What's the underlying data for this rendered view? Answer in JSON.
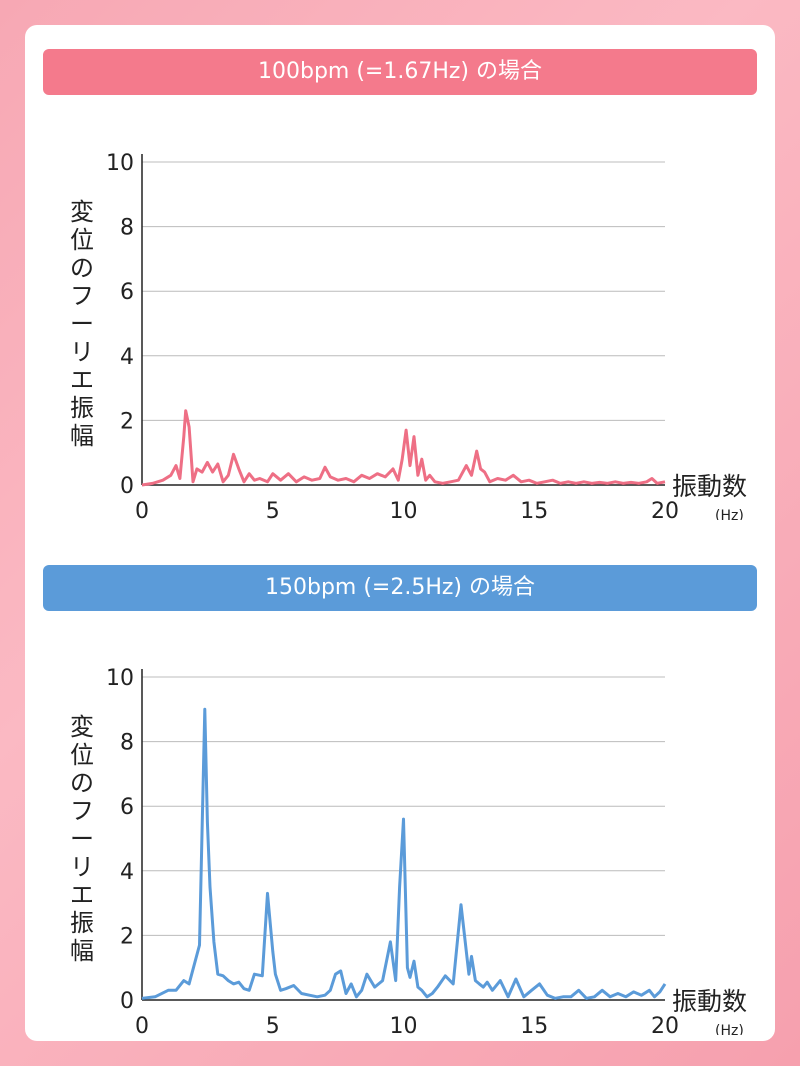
{
  "chart_data": [
    {
      "type": "line",
      "title": "100bpm (=1.67Hz) の場合",
      "ylabel": "変位のフーリエ振幅",
      "xlabel": "振動数",
      "xunit": "(Hz)",
      "xlim": [
        0,
        20
      ],
      "ylim": [
        0,
        10
      ],
      "xticks": [
        "0",
        "5",
        "10",
        "15",
        "20"
      ],
      "yticks": [
        "0",
        "2",
        "4",
        "6",
        "8",
        "10"
      ],
      "grid": true,
      "color": "#ee6f85",
      "x": [
        0,
        0.4,
        0.8,
        1.1,
        1.3,
        1.45,
        1.6,
        1.67,
        1.8,
        1.95,
        2.1,
        2.3,
        2.5,
        2.7,
        2.9,
        3.1,
        3.3,
        3.5,
        3.7,
        3.9,
        4.1,
        4.3,
        4.5,
        4.8,
        5.0,
        5.3,
        5.6,
        5.9,
        6.2,
        6.5,
        6.8,
        7.0,
        7.2,
        7.5,
        7.8,
        8.1,
        8.4,
        8.7,
        9.0,
        9.3,
        9.6,
        9.8,
        9.95,
        10.1,
        10.25,
        10.4,
        10.55,
        10.7,
        10.85,
        11.0,
        11.2,
        11.5,
        11.8,
        12.1,
        12.4,
        12.6,
        12.8,
        12.95,
        13.1,
        13.3,
        13.6,
        13.9,
        14.2,
        14.5,
        14.8,
        15.1,
        15.4,
        15.7,
        16.0,
        16.3,
        16.6,
        16.9,
        17.2,
        17.5,
        17.8,
        18.1,
        18.4,
        18.7,
        19.0,
        19.3,
        19.5,
        19.7,
        20.0
      ],
      "y": [
        0,
        0.05,
        0.15,
        0.3,
        0.6,
        0.2,
        1.5,
        2.3,
        1.8,
        0.1,
        0.5,
        0.4,
        0.7,
        0.4,
        0.65,
        0.1,
        0.3,
        0.95,
        0.5,
        0.1,
        0.35,
        0.15,
        0.2,
        0.1,
        0.35,
        0.15,
        0.35,
        0.1,
        0.25,
        0.15,
        0.2,
        0.55,
        0.25,
        0.15,
        0.2,
        0.1,
        0.3,
        0.2,
        0.35,
        0.25,
        0.5,
        0.15,
        0.8,
        1.7,
        0.6,
        1.5,
        0.3,
        0.8,
        0.15,
        0.3,
        0.1,
        0.05,
        0.1,
        0.15,
        0.6,
        0.3,
        1.05,
        0.5,
        0.4,
        0.1,
        0.2,
        0.15,
        0.3,
        0.1,
        0.15,
        0.05,
        0.1,
        0.15,
        0.05,
        0.1,
        0.05,
        0.1,
        0.05,
        0.08,
        0.05,
        0.1,
        0.05,
        0.08,
        0.05,
        0.1,
        0.2,
        0.05,
        0.1
      ]
    },
    {
      "type": "line",
      "title": "150bpm (=2.5Hz) の場合",
      "ylabel": "変位のフーリエ振幅",
      "xlabel": "振動数",
      "xunit": "(Hz)",
      "xlim": [
        0,
        20
      ],
      "ylim": [
        0,
        10
      ],
      "xticks": [
        "0",
        "5",
        "10",
        "15",
        "20"
      ],
      "yticks": [
        "0",
        "2",
        "4",
        "6",
        "8",
        "10"
      ],
      "grid": true,
      "color": "#5b9bd9",
      "x": [
        0,
        0.5,
        1.0,
        1.3,
        1.6,
        1.8,
        2.0,
        2.2,
        2.4,
        2.5,
        2.6,
        2.75,
        2.9,
        3.1,
        3.3,
        3.5,
        3.7,
        3.9,
        4.1,
        4.3,
        4.6,
        4.8,
        5.0,
        5.1,
        5.3,
        5.5,
        5.8,
        6.1,
        6.4,
        6.7,
        7.0,
        7.2,
        7.4,
        7.6,
        7.8,
        8.0,
        8.2,
        8.4,
        8.6,
        8.9,
        9.2,
        9.5,
        9.7,
        9.85,
        10.0,
        10.15,
        10.25,
        10.4,
        10.55,
        10.7,
        10.9,
        11.1,
        11.3,
        11.6,
        11.9,
        12.2,
        12.5,
        12.6,
        12.75,
        12.9,
        13.05,
        13.2,
        13.4,
        13.7,
        14.0,
        14.3,
        14.6,
        14.9,
        15.2,
        15.5,
        15.8,
        16.1,
        16.4,
        16.7,
        17.0,
        17.3,
        17.6,
        17.9,
        18.2,
        18.5,
        18.8,
        19.1,
        19.4,
        19.6,
        19.8,
        20.0
      ],
      "y": [
        0.05,
        0.1,
        0.3,
        0.3,
        0.6,
        0.5,
        1.1,
        1.7,
        9.0,
        5.5,
        3.5,
        1.8,
        0.8,
        0.75,
        0.6,
        0.5,
        0.55,
        0.35,
        0.3,
        0.8,
        0.75,
        3.3,
        1.5,
        0.8,
        0.3,
        0.35,
        0.45,
        0.2,
        0.15,
        0.1,
        0.15,
        0.3,
        0.8,
        0.9,
        0.2,
        0.5,
        0.1,
        0.3,
        0.8,
        0.4,
        0.6,
        1.8,
        0.6,
        3.5,
        5.6,
        1.0,
        0.7,
        1.2,
        0.4,
        0.3,
        0.1,
        0.2,
        0.4,
        0.75,
        0.5,
        2.95,
        0.8,
        1.35,
        0.6,
        0.5,
        0.4,
        0.55,
        0.3,
        0.6,
        0.1,
        0.65,
        0.1,
        0.3,
        0.5,
        0.15,
        0.05,
        0.1,
        0.1,
        0.3,
        0.05,
        0.1,
        0.3,
        0.1,
        0.2,
        0.1,
        0.25,
        0.15,
        0.3,
        0.1,
        0.25,
        0.5
      ]
    }
  ]
}
